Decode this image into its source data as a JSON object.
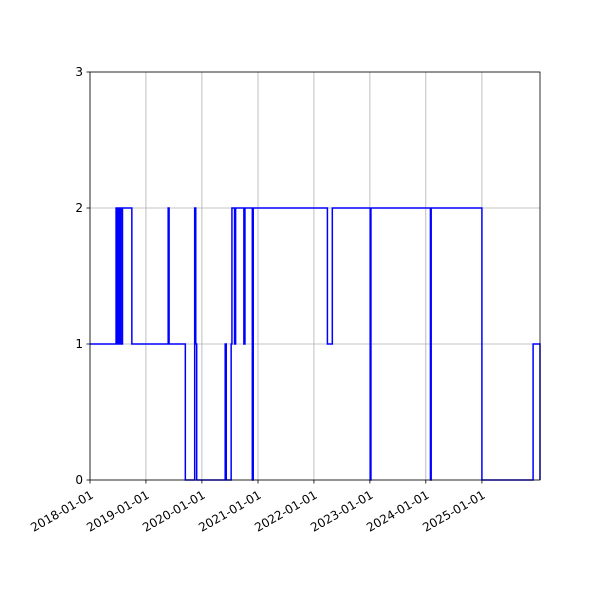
{
  "chart_data": {
    "type": "line",
    "title": "",
    "xlabel": "",
    "ylabel": "",
    "x_axis_type": "date",
    "xlim": [
      "2018-01-01",
      "2026-01-15"
    ],
    "ylim": [
      0,
      3
    ],
    "x_ticks": [
      "2018-01-01",
      "2019-01-01",
      "2020-01-01",
      "2021-01-01",
      "2022-01-01",
      "2023-01-01",
      "2024-01-01",
      "2025-01-01"
    ],
    "y_ticks": [
      0,
      1,
      2,
      3
    ],
    "grid": true,
    "line_style": "steps",
    "series": [
      {
        "color": "#0000ff",
        "x": [
          "2018-01-01",
          "2018-06-20",
          "2018-06-28",
          "2018-07-05",
          "2018-07-10",
          "2018-07-15",
          "2018-07-22",
          "2018-08-01",
          "2018-10-01",
          "2018-10-05",
          "2019-05-26",
          "2019-06-01",
          "2019-09-10",
          "2019-09-15",
          "2019-11-10",
          "2019-11-15",
          "2019-11-22",
          "2019-11-28",
          "2020-06-01",
          "2020-06-08",
          "2020-07-10",
          "2020-07-15",
          "2020-08-01",
          "2020-08-08",
          "2020-10-01",
          "2020-10-08",
          "2020-11-25",
          "2020-12-01",
          "2021-01-01",
          "2022-03-30",
          "2022-04-15",
          "2022-05-01",
          "2023-01-03",
          "2023-01-08",
          "2024-01-31",
          "2024-02-05",
          "2025-01-01",
          "2025-01-08",
          "2025-12-01",
          "2026-01-15"
        ],
        "y": [
          1,
          2,
          1,
          2,
          1,
          2,
          1,
          2,
          1,
          1,
          2,
          1,
          1,
          0,
          0,
          2,
          1,
          0,
          1,
          0,
          1,
          2,
          1,
          2,
          1,
          2,
          0,
          2,
          2,
          1,
          1,
          2,
          0,
          2,
          0,
          2,
          0,
          0,
          1,
          0
        ]
      }
    ]
  }
}
